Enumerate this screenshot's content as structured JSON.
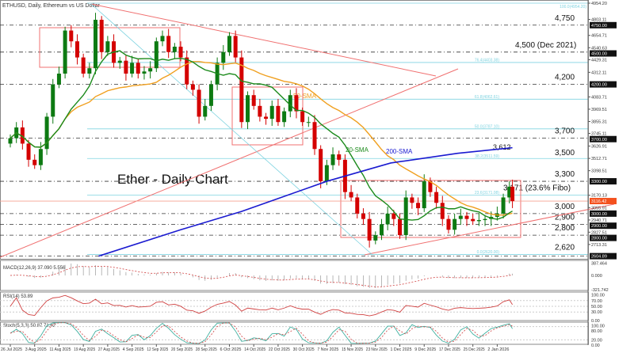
{
  "chart_data": {
    "type": "candlestick",
    "title": "ETHUSD, Daily, Ethereum vs US Dollar",
    "annotation_title": "Ether - Daily Chart",
    "ylim": [
      2604.89,
      4954.2
    ],
    "dates": [
      "2025-07-26",
      "2025-07-28",
      "2025-07-30",
      "2025-08-01",
      "2025-08-03",
      "2025-08-05",
      "2025-08-07",
      "2025-08-09",
      "2025-08-11",
      "2025-08-13",
      "2025-08-15",
      "2025-08-17",
      "2025-08-19",
      "2025-08-21",
      "2025-08-23",
      "2025-08-25",
      "2025-08-27",
      "2025-08-29",
      "2025-08-31",
      "2025-09-02",
      "2025-09-04",
      "2025-09-06",
      "2025-09-08",
      "2025-09-10",
      "2025-09-12",
      "2025-09-14",
      "2025-09-16",
      "2025-09-18",
      "2025-09-20",
      "2025-09-22",
      "2025-09-24",
      "2025-09-26",
      "2025-09-28",
      "2025-09-30",
      "2025-10-02",
      "2025-10-04",
      "2025-10-06",
      "2025-10-08",
      "2025-10-10",
      "2025-10-12",
      "2025-10-14",
      "2025-10-16",
      "2025-10-18",
      "2025-10-20",
      "2025-10-22",
      "2025-10-24",
      "2025-10-26",
      "2025-10-28",
      "2025-10-30",
      "2025-11-01",
      "2025-11-03",
      "2025-11-05",
      "2025-11-07",
      "2025-11-09",
      "2025-11-11",
      "2025-11-13",
      "2025-11-15",
      "2025-11-17",
      "2025-11-19",
      "2025-11-21",
      "2025-11-23",
      "2025-11-25",
      "2025-11-27",
      "2025-11-29",
      "2025-12-01",
      "2025-12-03",
      "2025-12-05",
      "2025-12-07",
      "2025-12-09",
      "2025-12-11",
      "2025-12-13",
      "2025-12-15",
      "2025-12-17",
      "2025-12-19",
      "2025-12-21",
      "2025-12-23",
      "2025-12-25",
      "2025-12-27",
      "2025-12-29",
      "2025-12-31",
      "2026-01-02",
      "2026-01-04",
      "2026-01-06",
      "2026-01-07"
    ],
    "close": [
      3700,
      3800,
      3650,
      3500,
      3450,
      3600,
      3900,
      4200,
      4300,
      4700,
      4600,
      4450,
      4300,
      4350,
      4800,
      4500,
      4600,
      4400,
      4420,
      4300,
      4400,
      4300,
      4320,
      4350,
      4600,
      4650,
      4500,
      4550,
      4450,
      4200,
      4150,
      3900,
      4000,
      4200,
      4400,
      4500,
      4650,
      4450,
      3850,
      4100,
      4000,
      3900,
      3880,
      4000,
      3850,
      3950,
      4100,
      3950,
      3850,
      3850,
      3600,
      3300,
      3450,
      3550,
      3500,
      3200,
      3150,
      3000,
      2950,
      2750,
      2800,
      2900,
      3000,
      2950,
      2800,
      3150,
      3100,
      3050,
      3300,
      3200,
      3100,
      2950,
      2850,
      2950,
      2980,
      2950,
      2930,
      2940,
      2950,
      2970,
      3000,
      3150,
      3250,
      3116
    ],
    "sma200": [
      [
        "2025-08-24",
        2605
      ],
      [
        "2025-09-20",
        2850
      ],
      [
        "2025-10-10",
        3020
      ],
      [
        "2025-11-07",
        3300
      ],
      [
        "2025-11-28",
        3470
      ],
      [
        "2025-12-20",
        3560
      ],
      [
        "2026-01-07",
        3612
      ]
    ],
    "x_ticks": [
      "26 Jul 2025",
      "3 Aug 2025",
      "11 Aug 2025",
      "19 Aug 2025",
      "27 Aug 2025",
      "4 Sep 2025",
      "12 Sep 2025",
      "20 Sep 2025",
      "28 Sep 2025",
      "6 Oct 2025",
      "14 Oct 2025",
      "22 Oct 2025",
      "30 Oct 2025",
      "7 Nov 2025",
      "15 Nov 2025",
      "23 Nov 2025",
      "1 Dec 2025",
      "9 Dec 2025",
      "17 Dec 2025",
      "25 Dec 2025",
      "2 Jan 2026"
    ],
    "y_ticks": [
      "4954.20",
      "4803.11",
      "4654.71",
      "4540.63",
      "4429.31",
      "4312.11",
      "4083.71",
      "3969.51",
      "3855.31",
      "3745.11",
      "3626.91",
      "3512.71",
      "3398.51",
      "3170.13",
      "3055.91",
      "2940.71",
      "2827.51",
      "2713.31"
    ],
    "current_price": {
      "value": 3116.42,
      "label": "3116.42",
      "color": "#f4511e"
    },
    "levels": [
      {
        "value": 4750,
        "label": "4,750",
        "axis": "4750.00"
      },
      {
        "value": 4500,
        "label": "4,500 (Dec 2021)",
        "axis": "4500.00"
      },
      {
        "value": 4200,
        "label": "4,200",
        "axis": "4200.00"
      },
      {
        "value": 3700,
        "label": "3,700",
        "axis": "3700.00"
      },
      {
        "value": 3300,
        "label": "3,300",
        "axis": "3300.00"
      },
      {
        "value": 3000,
        "label": "3,000",
        "axis": "3000.00"
      },
      {
        "value": 2900,
        "label": "2,900",
        "axis": "2900.00"
      },
      {
        "value": 2800,
        "label": "2,800",
        "axis": "2800.00"
      },
      {
        "value": 2604.89,
        "label": "",
        "axis": "2604.89"
      }
    ],
    "plain_labels": [
      {
        "value": 3500,
        "label": "3,500"
      },
      {
        "value": 3171,
        "label": "3,171 (23.6% Fibo)"
      },
      {
        "value": 2620,
        "label": "2,620"
      }
    ],
    "fibo": [
      {
        "value": 4954.2,
        "label": "100.0(4954.20)"
      },
      {
        "value": 4403.4,
        "label": "76.4(4403.38)"
      },
      {
        "value": 4062.6,
        "label": "61.8(4062.61)"
      },
      {
        "value": 3787.1,
        "label": "50.0(3787.10)"
      },
      {
        "value": 3511.6,
        "label": "38.2(3511.59)"
      },
      {
        "value": 3171.1,
        "label": "23.6(3171.08)"
      },
      {
        "value": 2620.0,
        "label": "0.0(2620.00)"
      }
    ],
    "ma_labels": {
      "sma50": "50-SMA",
      "sma20": "20-SMA",
      "sma200": "200-SMA",
      "sma200_value": "3,612"
    },
    "colors": {
      "up": "#0d7a12",
      "down": "#d40000",
      "sma20": "#1b8a1b",
      "sma50": "#f0a020",
      "sma200": "#1a1ad0",
      "fibo": "#7fd3e0",
      "trend": "#f07070"
    },
    "macd": {
      "label": "MACD(12,26,9) 37.090 5.556",
      "ticks": [
        "387.464",
        "0.000",
        "-321.742"
      ]
    },
    "rsi": {
      "label": "RSI(14) 53.89",
      "ticks": [
        "100.00",
        "70.00",
        "50.00",
        "30.00",
        "0.00"
      ]
    },
    "stoch": {
      "label": "Stoch(5,3,3) 50.87 71.62",
      "ticks": [
        "100.00",
        "80.00",
        "20.00",
        "0.00"
      ]
    }
  }
}
